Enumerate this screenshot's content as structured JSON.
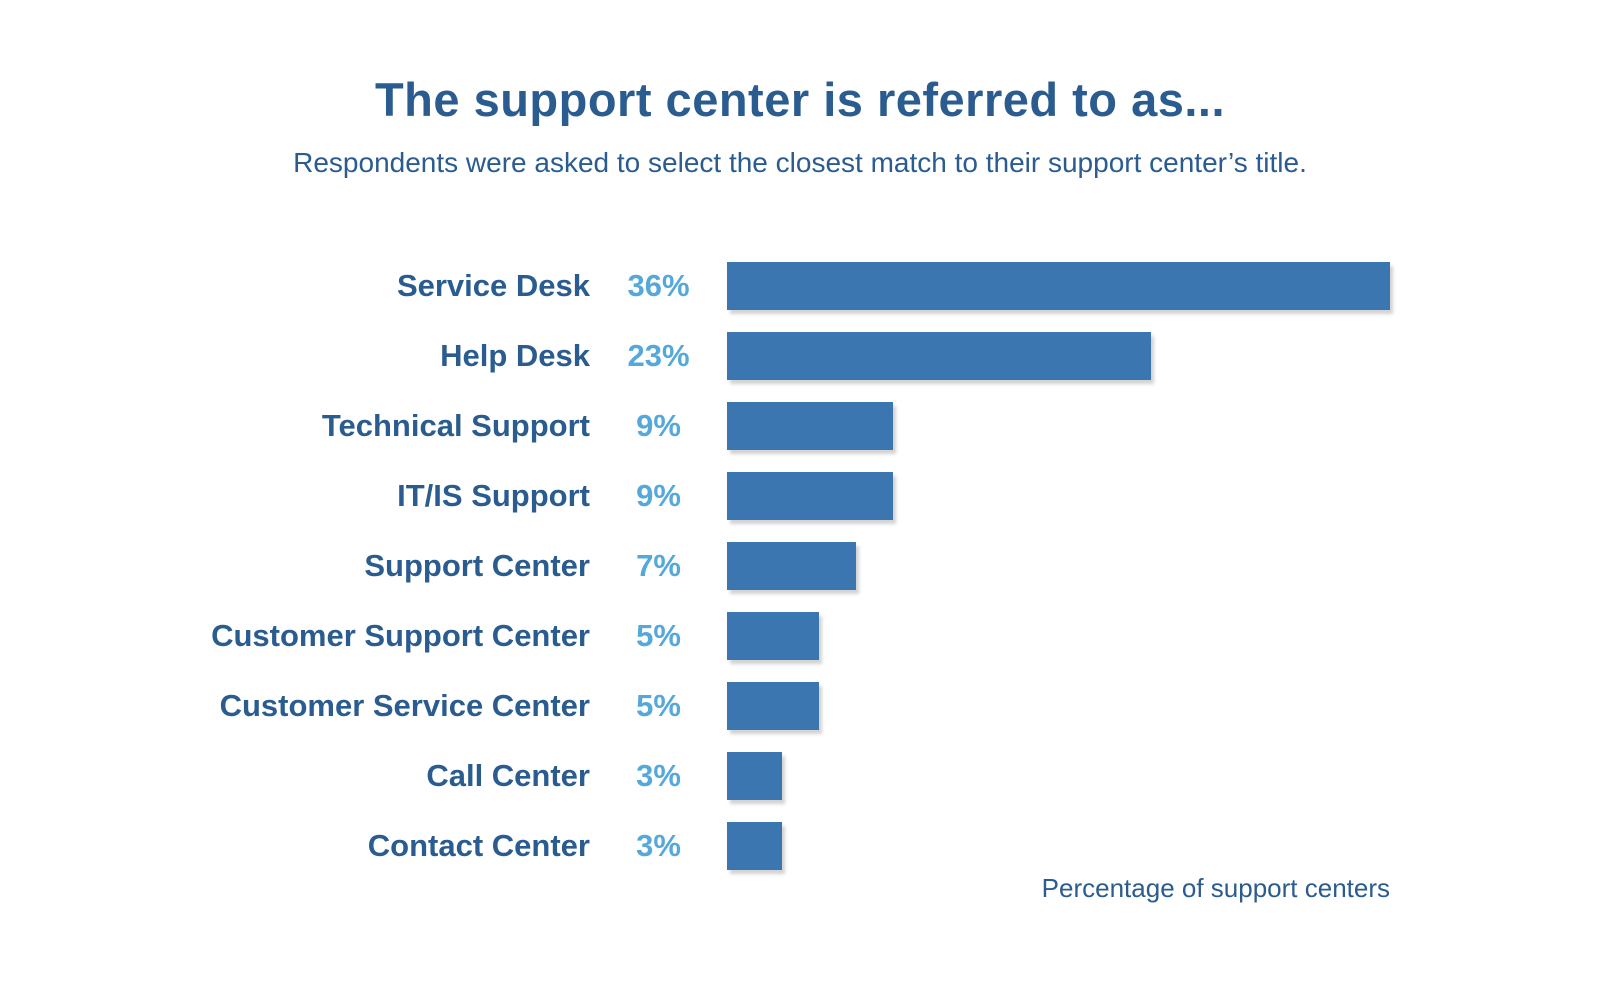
{
  "header": {
    "title": "The support center is referred to as...",
    "subtitle": "Respondents were asked to select the closest match to their support center’s title."
  },
  "chart_data": {
    "type": "bar",
    "orientation": "horizontal",
    "title": "The support center is referred to as...",
    "subtitle": "Respondents were asked to select the closest match to their support center’s title.",
    "categories": [
      "Service Desk",
      "Help Desk",
      "Technical Support",
      "IT/IS Support",
      "Support Center",
      "Customer Support Center",
      "Customer Service Center",
      "Call Center",
      "Contact Center"
    ],
    "values": [
      36,
      23,
      9,
      9,
      7,
      5,
      5,
      3,
      3
    ],
    "value_suffix": "%",
    "xlim": [
      0,
      36
    ],
    "xlabel": "Percentage of support centers",
    "legend": "none",
    "grid": "off",
    "colors": {
      "bar": "#3c76b1",
      "category_label": "#2a5c90",
      "value_label": "#54a8da",
      "background": "#ffffff"
    }
  },
  "footer": {
    "note": "Percentage of support centers"
  }
}
